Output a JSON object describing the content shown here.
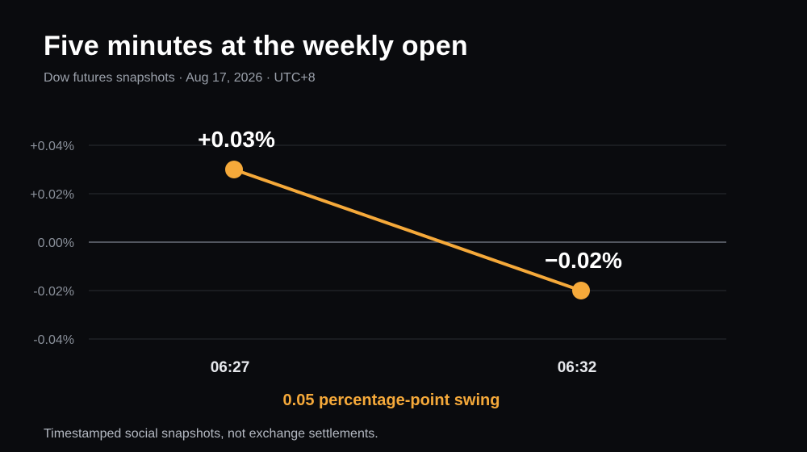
{
  "chart_data": {
    "type": "line",
    "title": "Five minutes at the weekly open",
    "subtitle": "Dow futures snapshots · Aug 17, 2026 · UTC+8",
    "categories": [
      "06:27",
      "06:32"
    ],
    "series": [
      {
        "values": [
          0.03,
          -0.02
        ],
        "data_labels": [
          "+0.03%",
          "−0.02%"
        ],
        "color": "#f5a93a"
      }
    ],
    "ylim": [
      -0.04,
      0.04
    ],
    "yticks": [
      0.04,
      0.02,
      0.0,
      -0.02,
      -0.04
    ],
    "ytick_labels": [
      "+0.04%",
      "+0.02%",
      "0.00%",
      "-0.02%",
      "-0.04%"
    ],
    "grid": true,
    "annotation": "0.05 percentage-point swing",
    "footnote": "Timestamped social snapshots, not exchange settlements.",
    "colors": {
      "background": "#0a0b0e",
      "line": "#f5a93a",
      "grid": "#2a2d33",
      "zero_line": "#6b707a",
      "annotation": "#f5a93a"
    }
  }
}
